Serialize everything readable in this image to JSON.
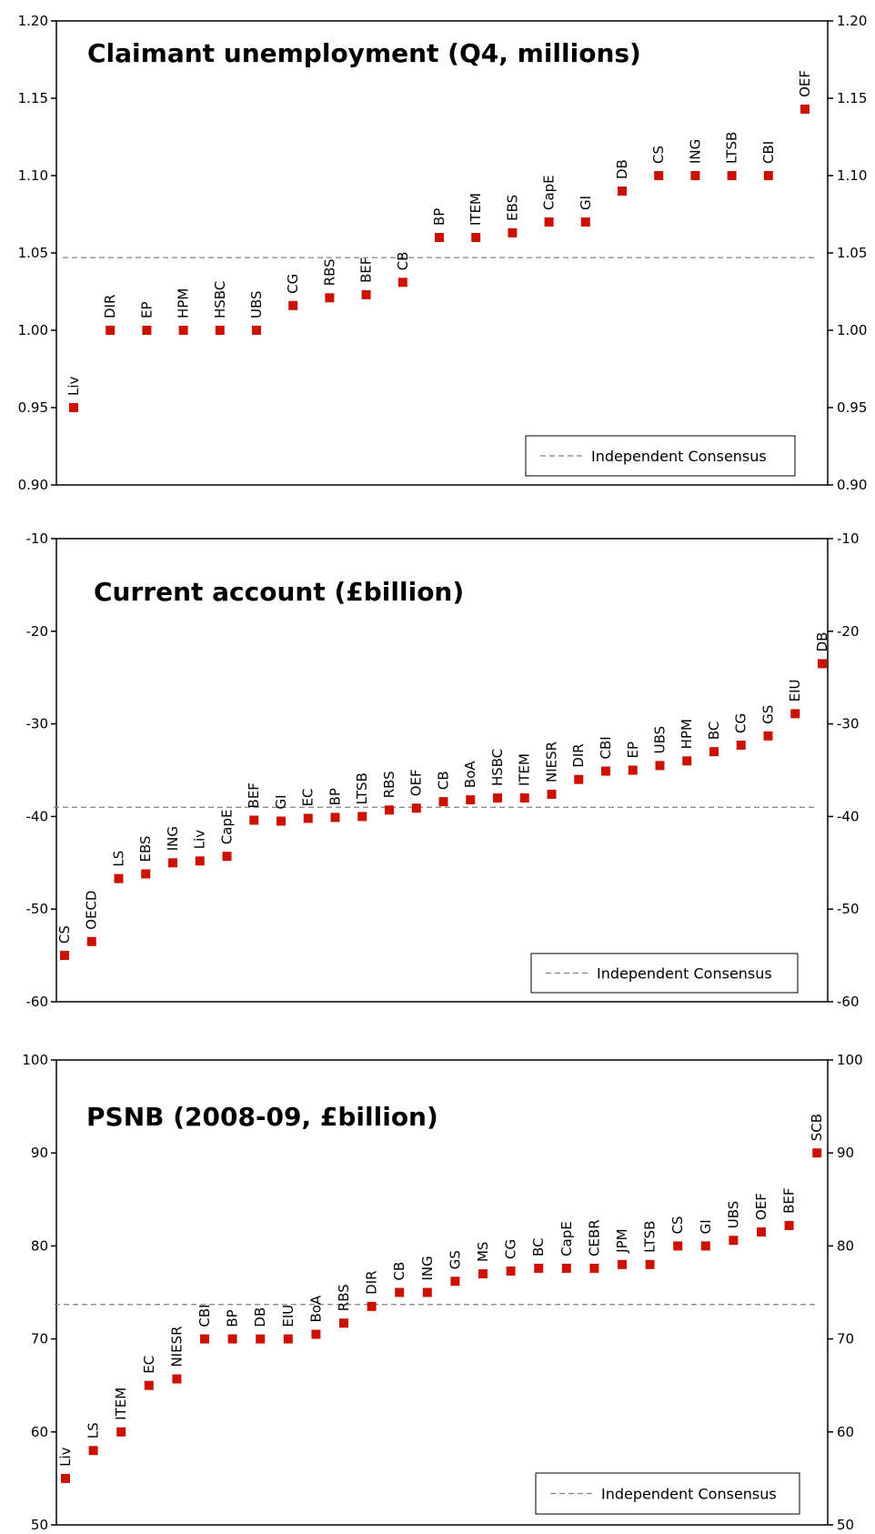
{
  "colors": {
    "marker": "#cc1100",
    "consensus_line": "#808080",
    "axis": "#000000"
  },
  "chart_data": [
    {
      "type": "scatter",
      "title": "Claimant unemployment  (Q4, millions)",
      "ylim": [
        0.9,
        1.2
      ],
      "yticks": [
        0.9,
        0.95,
        1.0,
        1.05,
        1.1,
        1.15,
        1.2
      ],
      "tick_decimals": 2,
      "consensus": 1.047,
      "legend": "Independent Consensus",
      "legend_position": "bottom-right",
      "grid": false,
      "points": [
        {
          "label": "Liv",
          "value": 0.95
        },
        {
          "label": "DIR",
          "value": 1.0
        },
        {
          "label": "EP",
          "value": 1.0
        },
        {
          "label": "HPM",
          "value": 1.0
        },
        {
          "label": "HSBC",
          "value": 1.0
        },
        {
          "label": "UBS",
          "value": 1.0
        },
        {
          "label": "CG",
          "value": 1.016
        },
        {
          "label": "RBS",
          "value": 1.021
        },
        {
          "label": "BEF",
          "value": 1.023
        },
        {
          "label": "CB",
          "value": 1.031
        },
        {
          "label": "BP",
          "value": 1.06
        },
        {
          "label": "ITEM",
          "value": 1.06
        },
        {
          "label": "EBS",
          "value": 1.063
        },
        {
          "label": "CapE",
          "value": 1.07
        },
        {
          "label": "GI",
          "value": 1.07
        },
        {
          "label": "DB",
          "value": 1.09
        },
        {
          "label": "CS",
          "value": 1.1
        },
        {
          "label": "ING",
          "value": 1.1
        },
        {
          "label": "LTSB",
          "value": 1.1
        },
        {
          "label": "CBI",
          "value": 1.1
        },
        {
          "label": "OEF",
          "value": 1.143
        }
      ]
    },
    {
      "type": "scatter",
      "title": "Current account (£billion)",
      "ylim": [
        -60,
        -10
      ],
      "yticks": [
        -60,
        -50,
        -40,
        -30,
        -20,
        -10
      ],
      "tick_decimals": 0,
      "consensus": -39.0,
      "legend": "Independent Consensus",
      "legend_position": "bottom-right",
      "grid": false,
      "points": [
        {
          "label": "CS",
          "value": -55.0
        },
        {
          "label": "OECD",
          "value": -53.5
        },
        {
          "label": "LS",
          "value": -46.7
        },
        {
          "label": "EBS",
          "value": -46.2
        },
        {
          "label": "ING",
          "value": -45.0
        },
        {
          "label": "Liv",
          "value": -44.8
        },
        {
          "label": "CapE",
          "value": -44.3
        },
        {
          "label": "BEF",
          "value": -40.4
        },
        {
          "label": "GI",
          "value": -40.5
        },
        {
          "label": "EC",
          "value": -40.2
        },
        {
          "label": "BP",
          "value": -40.1
        },
        {
          "label": "LTSB",
          "value": -40.0
        },
        {
          "label": "RBS",
          "value": -39.3
        },
        {
          "label": "OEF",
          "value": -39.1
        },
        {
          "label": "CB",
          "value": -38.4
        },
        {
          "label": "BoA",
          "value": -38.2
        },
        {
          "label": "HSBC",
          "value": -38.0
        },
        {
          "label": "ITEM",
          "value": -38.0
        },
        {
          "label": "NIESR",
          "value": -37.6
        },
        {
          "label": "DIR",
          "value": -36.0
        },
        {
          "label": "CBI",
          "value": -35.1
        },
        {
          "label": "EP",
          "value": -35.0
        },
        {
          "label": "UBS",
          "value": -34.5
        },
        {
          "label": "HPM",
          "value": -34.0
        },
        {
          "label": "BC",
          "value": -33.0
        },
        {
          "label": "CG",
          "value": -32.3
        },
        {
          "label": "GS",
          "value": -31.3
        },
        {
          "label": "EIU",
          "value": -28.9
        },
        {
          "label": "DB",
          "value": -23.5
        }
      ]
    },
    {
      "type": "scatter",
      "title": "PSNB (2008-09, £billion)",
      "ylim": [
        50,
        100
      ],
      "yticks": [
        50,
        60,
        70,
        80,
        90,
        100
      ],
      "tick_decimals": 0,
      "consensus": 73.7,
      "legend": "Independent Consensus",
      "legend_position": "bottom-right",
      "grid": false,
      "points": [
        {
          "label": "Liv",
          "value": 55.0
        },
        {
          "label": "LS",
          "value": 58.0
        },
        {
          "label": "ITEM",
          "value": 60.0
        },
        {
          "label": "EC",
          "value": 65.0
        },
        {
          "label": "NIESR",
          "value": 65.7
        },
        {
          "label": "CBI",
          "value": 70.0
        },
        {
          "label": "BP",
          "value": 70.0
        },
        {
          "label": "DB",
          "value": 70.0
        },
        {
          "label": "EIU",
          "value": 70.0
        },
        {
          "label": "BoA",
          "value": 70.5
        },
        {
          "label": "RBS",
          "value": 71.7
        },
        {
          "label": "DIR",
          "value": 73.5
        },
        {
          "label": "CB",
          "value": 75.0
        },
        {
          "label": "ING",
          "value": 75.0
        },
        {
          "label": "GS",
          "value": 76.2
        },
        {
          "label": "MS",
          "value": 77.0
        },
        {
          "label": "CG",
          "value": 77.3
        },
        {
          "label": "BC",
          "value": 77.6
        },
        {
          "label": "CapE",
          "value": 77.6
        },
        {
          "label": "CEBR",
          "value": 77.6
        },
        {
          "label": "JPM",
          "value": 78.0
        },
        {
          "label": "LTSB",
          "value": 78.0
        },
        {
          "label": "CS",
          "value": 80.0
        },
        {
          "label": "GI",
          "value": 80.0
        },
        {
          "label": "UBS",
          "value": 80.6
        },
        {
          "label": "OEF",
          "value": 81.5
        },
        {
          "label": "BEF",
          "value": 82.2
        },
        {
          "label": "SCB",
          "value": 90.0
        }
      ]
    }
  ]
}
